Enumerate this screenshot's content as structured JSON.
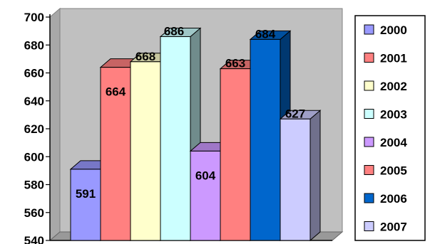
{
  "chart_data": {
    "type": "bar",
    "title": "",
    "xlabel": "",
    "ylabel": "",
    "ylim": [
      540,
      700
    ],
    "y_ticks": [
      "700",
      "680",
      "660",
      "640",
      "620",
      "600",
      "580",
      "560",
      "540"
    ],
    "grid": false,
    "style": "3d-column",
    "legend_position": "right",
    "series": [
      {
        "name": "2000",
        "value": 591,
        "label": "591",
        "color": "#9999ff"
      },
      {
        "name": "2001",
        "value": 664,
        "label": "664",
        "color": "#ff8080"
      },
      {
        "name": "2002",
        "value": 668,
        "label": "668",
        "color": "#ffffcc"
      },
      {
        "name": "2003",
        "value": 686,
        "label": "686",
        "color": "#ccffff"
      },
      {
        "name": "2004",
        "value": 604,
        "label": "604",
        "color": "#cc99ff"
      },
      {
        "name": "2005",
        "value": 663,
        "label": "663",
        "color": "#ff8080"
      },
      {
        "name": "2006",
        "value": 684,
        "label": "684",
        "color": "#0066cc"
      },
      {
        "name": "2007",
        "value": 627,
        "label": "627",
        "color": "#ccccff"
      }
    ],
    "colors": {
      "plot_wall": "#c0c0c0",
      "floor": "#999999"
    }
  }
}
